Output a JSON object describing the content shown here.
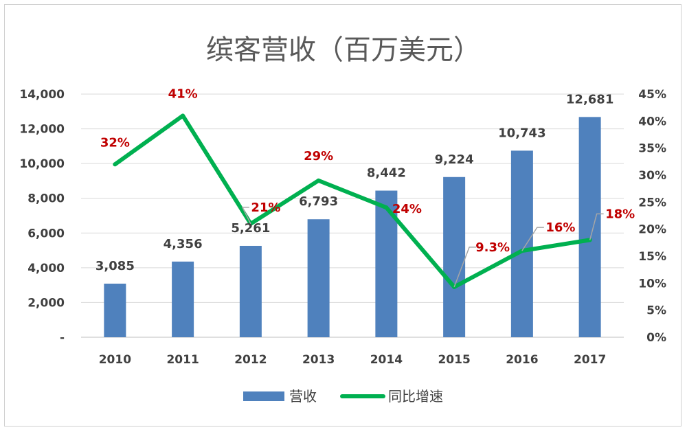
{
  "chart_data": {
    "type": "bar",
    "title": "缤客营收（百万美元）",
    "categories": [
      "2010",
      "2011",
      "2012",
      "2013",
      "2014",
      "2015",
      "2016",
      "2017"
    ],
    "series": [
      {
        "name": "营收",
        "type": "bar",
        "axis": "left",
        "color": "#4f81bd",
        "values": [
          3085,
          4356,
          5261,
          6793,
          8442,
          9224,
          10743,
          12681
        ],
        "labels": [
          "3,085",
          "4,356",
          "5,261",
          "6,793",
          "8,442",
          "9,224",
          "10,743",
          "12,681"
        ]
      },
      {
        "name": "同比增速",
        "type": "line",
        "axis": "right",
        "color": "#00b050",
        "values": [
          32,
          41,
          21,
          29,
          24,
          9.3,
          16,
          18
        ],
        "labels": [
          "32%",
          "41%",
          "21%",
          "29%",
          "24%",
          "9.3%",
          "16%",
          "18%"
        ]
      }
    ],
    "y_left": {
      "range": [
        0,
        14000
      ],
      "ticks": [
        0,
        2000,
        4000,
        6000,
        8000,
        10000,
        12000,
        14000
      ],
      "tick_labels": [
        "-",
        "2,000",
        "4,000",
        "6,000",
        "8,000",
        "10,000",
        "12,000",
        "14,000"
      ]
    },
    "y_right": {
      "range": [
        0,
        45
      ],
      "ticks": [
        0,
        5,
        10,
        15,
        20,
        25,
        30,
        35,
        40,
        45
      ],
      "tick_labels": [
        "0%",
        "5%",
        "10%",
        "15%",
        "20%",
        "25%",
        "30%",
        "35%",
        "40%",
        "45%"
      ]
    },
    "grid": true,
    "legend": "bottom",
    "label_color": "#c00000"
  }
}
